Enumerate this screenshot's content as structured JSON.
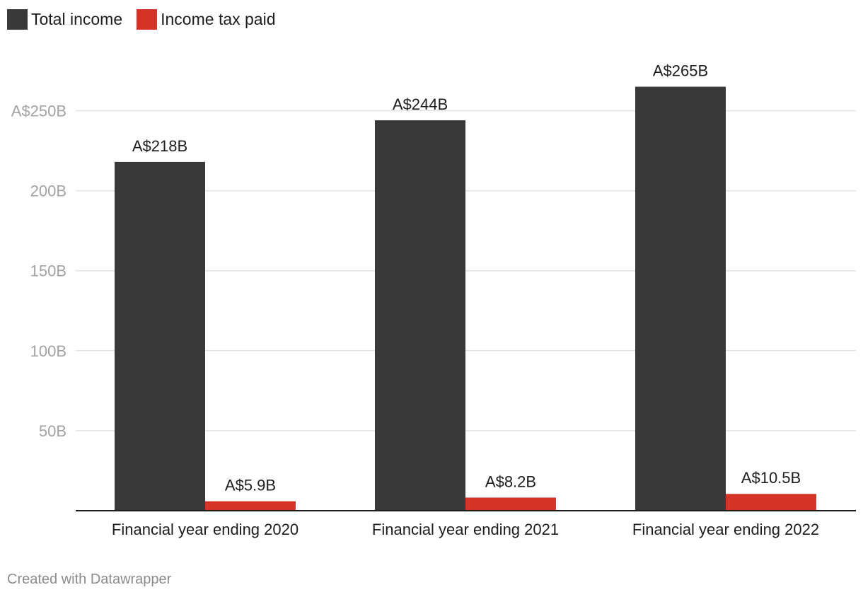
{
  "legend": {
    "items": [
      {
        "label": "Total income",
        "color": "#393939"
      },
      {
        "label": "Income tax paid",
        "color": "#d63328"
      }
    ]
  },
  "chart_data": {
    "type": "bar",
    "categories": [
      "Financial year ending 2020",
      "Financial year ending 2021",
      "Financial year ending 2022"
    ],
    "series": [
      {
        "name": "Total income",
        "color": "#393939",
        "values": [
          218,
          244,
          265
        ],
        "labels": [
          "A$218B",
          "A$244B",
          "A$265B"
        ]
      },
      {
        "name": "Income tax paid",
        "color": "#d63328",
        "values": [
          5.9,
          8.2,
          10.5
        ],
        "labels": [
          "A$5.9B",
          "A$8.2B",
          "A$10.5B"
        ]
      }
    ],
    "yticks": [
      {
        "value": 50,
        "label": "50B"
      },
      {
        "value": 100,
        "label": "100B"
      },
      {
        "value": 150,
        "label": "150B"
      },
      {
        "value": 200,
        "label": "200B"
      },
      {
        "value": 250,
        "label": "A$250B"
      }
    ],
    "ylim": [
      0,
      280
    ],
    "title": "",
    "xlabel": "",
    "ylabel": "",
    "grid": true,
    "legend_position": "top-left"
  },
  "footer": {
    "credit": "Created with Datawrapper"
  }
}
